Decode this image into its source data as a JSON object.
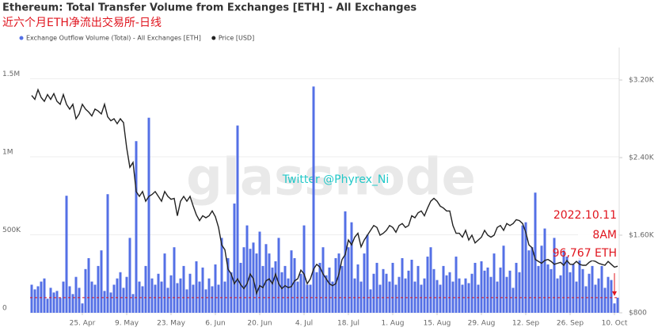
{
  "chart_data": {
    "type": "bar-line",
    "title": "Ethereum: Total Transfer Volume from Exchanges [ETH] - All Exchanges",
    "subtitle": "近六个月ETH净流出交易所-日线",
    "watermark": "glassnode",
    "credit": "Twitter @Phyrex_Ni",
    "annotations": [
      "2022.10.11",
      "8AM",
      "96,767 ETH"
    ],
    "categories": [
      null,
      null,
      null,
      null,
      null,
      null,
      null,
      null,
      null,
      null,
      null,
      null,
      null,
      null,
      null,
      null,
      "25. Apr",
      null,
      null,
      null,
      null,
      null,
      null,
      null,
      null,
      null,
      null,
      null,
      null,
      null,
      "9. May",
      null,
      null,
      null,
      null,
      null,
      null,
      null,
      null,
      null,
      null,
      null,
      null,
      null,
      "23. May",
      null,
      null,
      null,
      null,
      null,
      null,
      null,
      null,
      null,
      null,
      null,
      null,
      null,
      "6. Jun",
      null,
      null,
      null,
      null,
      null,
      null,
      null,
      null,
      null,
      null,
      null,
      null,
      null,
      "20. Jun",
      null,
      null,
      null,
      null,
      null,
      null,
      null,
      null,
      null,
      null,
      null,
      null,
      null,
      "4. Jul",
      null,
      null,
      null,
      null,
      null,
      null,
      null,
      null,
      null,
      null,
      null,
      null,
      null,
      "18. Jul",
      null,
      null,
      null,
      null,
      null,
      null,
      null,
      null,
      null,
      null,
      null,
      null,
      null,
      "1. Aug",
      null,
      null,
      null,
      null,
      null,
      null,
      null,
      null,
      null,
      null,
      null,
      null,
      null,
      "15. Aug",
      null,
      null,
      null,
      null,
      null,
      null,
      null,
      null,
      null,
      null,
      null,
      null,
      null,
      "29. Aug",
      null,
      null,
      null,
      null,
      null,
      null,
      null,
      null,
      null,
      null,
      null,
      null,
      null,
      "12. Sep",
      null,
      null,
      null,
      null,
      null,
      null,
      null,
      null,
      null,
      null,
      null,
      null,
      null,
      "26. Sep",
      null,
      null,
      null,
      null,
      null,
      null,
      null,
      null,
      null,
      null,
      null,
      null,
      null,
      "10. Oct",
      null
    ],
    "series": [
      {
        "name": "Exchange Outflow Volume (Total) - All Exchanges [ETH]",
        "color": "#5470e6",
        "kind": "bar",
        "values": [
          180000,
          150000,
          170000,
          200000,
          220000,
          90000,
          160000,
          130000,
          140000,
          95000,
          200000,
          750000,
          170000,
          120000,
          230000,
          160000,
          60000,
          280000,
          350000,
          200000,
          180000,
          300000,
          400000,
          140000,
          760000,
          130000,
          180000,
          220000,
          260000,
          160000,
          230000,
          480000,
          120000,
          1100000,
          200000,
          170000,
          300000,
          1250000,
          220000,
          180000,
          250000,
          200000,
          380000,
          160000,
          240000,
          420000,
          190000,
          220000,
          300000,
          150000,
          250000,
          180000,
          330000,
          200000,
          290000,
          150000,
          220000,
          170000,
          310000,
          180000,
          480000,
          200000,
          350000,
          260000,
          700000,
          1200000,
          320000,
          420000,
          560000,
          410000,
          450000,
          380000,
          520000,
          300000,
          440000,
          380000,
          290000,
          330000,
          480000,
          260000,
          300000,
          220000,
          400000,
          350000,
          200000,
          250000,
          560000,
          180000,
          180000,
          1450000,
          260000,
          320000,
          420000,
          240000,
          290000,
          200000,
          350000,
          380000,
          300000,
          650000,
          420000,
          580000,
          220000,
          310000,
          200000,
          380000,
          500000,
          150000,
          250000,
          320000,
          180000,
          280000,
          250000,
          200000,
          320000,
          180000,
          230000,
          350000,
          220000,
          270000,
          340000,
          200000,
          300000,
          180000,
          220000,
          360000,
          420000,
          280000,
          210000,
          180000,
          300000,
          240000,
          260000,
          200000,
          360000,
          220000,
          180000,
          220000,
          190000,
          250000,
          320000,
          180000,
          330000,
          270000,
          290000,
          230000,
          380000,
          200000,
          290000,
          430000,
          230000,
          270000,
          160000,
          320000,
          260000,
          560000,
          580000,
          400000,
          420000,
          770000,
          300000,
          430000,
          540000,
          310000,
          280000,
          480000,
          220000,
          240000,
          400000,
          360000,
          260000,
          310000,
          200000,
          350000,
          280000,
          170000,
          250000,
          300000,
          180000,
          220000,
          300000,
          160000,
          230000,
          210000,
          60000,
          96767
        ]
      },
      {
        "name": "Price [USD]",
        "color": "#222222",
        "kind": "line",
        "axis": "y2",
        "values": [
          3040,
          3000,
          3100,
          3020,
          2980,
          3050,
          3000,
          3060,
          2980,
          2950,
          3050,
          2950,
          2900,
          2950,
          2800,
          2850,
          2950,
          2900,
          2870,
          2830,
          2900,
          2880,
          2850,
          2950,
          2820,
          2780,
          2800,
          2750,
          2800,
          2760,
          2500,
          2300,
          2350,
          2050,
          2000,
          2050,
          1950,
          2000,
          2020,
          2050,
          2000,
          1950,
          2050,
          2000,
          1970,
          1980,
          1800,
          1950,
          2000,
          1950,
          2000,
          1900,
          1810,
          1750,
          1800,
          1780,
          1800,
          1850,
          1790,
          1680,
          1500,
          1450,
          1250,
          1200,
          1100,
          1150,
          1090,
          1050,
          1100,
          1200,
          1150,
          1000,
          1080,
          1060,
          1130,
          1150,
          1100,
          1200,
          1100,
          1050,
          1080,
          1060,
          1070,
          1130,
          1150,
          1240,
          1200,
          1100,
          1150,
          1250,
          1300,
          1270,
          1200,
          1150,
          1100,
          1080,
          1100,
          1200,
          1350,
          1400,
          1550,
          1500,
          1580,
          1620,
          1480,
          1550,
          1600,
          1650,
          1700,
          1680,
          1600,
          1620,
          1650,
          1700,
          1680,
          1630,
          1700,
          1720,
          1680,
          1700,
          1800,
          1780,
          1830,
          1850,
          1800,
          1880,
          1950,
          1980,
          1950,
          1900,
          1880,
          1850,
          1850,
          1700,
          1620,
          1620,
          1580,
          1650,
          1550,
          1600,
          1520,
          1550,
          1580,
          1650,
          1600,
          1580,
          1600,
          1680,
          1700,
          1650,
          1720,
          1700,
          1720,
          1760,
          1750,
          1720,
          1630,
          1500,
          1470,
          1350,
          1330,
          1310,
          1340,
          1350,
          1330,
          1300,
          1310,
          1320,
          1290,
          1340,
          1300,
          1300,
          1330,
          1300,
          1290,
          1290,
          1320,
          1340,
          1330,
          1310,
          1300,
          1290,
          1330,
          1300,
          1270,
          1280
        ]
      }
    ],
    "ylim": [
      0,
      1700000
    ],
    "yticks": [
      0,
      {
        "value": 500000,
        "label": "500K"
      },
      {
        "value": 1000000,
        "label": "1M"
      },
      {
        "value": 1500000,
        "label": "1.5M"
      }
    ],
    "y2lim": [
      800,
      3535
    ],
    "y2ticks": [
      {
        "value": 800,
        "label": "$800"
      },
      {
        "value": 1600,
        "label": "$1.60K"
      },
      {
        "value": 2400,
        "label": "$2.40K"
      },
      {
        "value": 3200,
        "label": "$3.20K"
      }
    ],
    "grid": true
  }
}
